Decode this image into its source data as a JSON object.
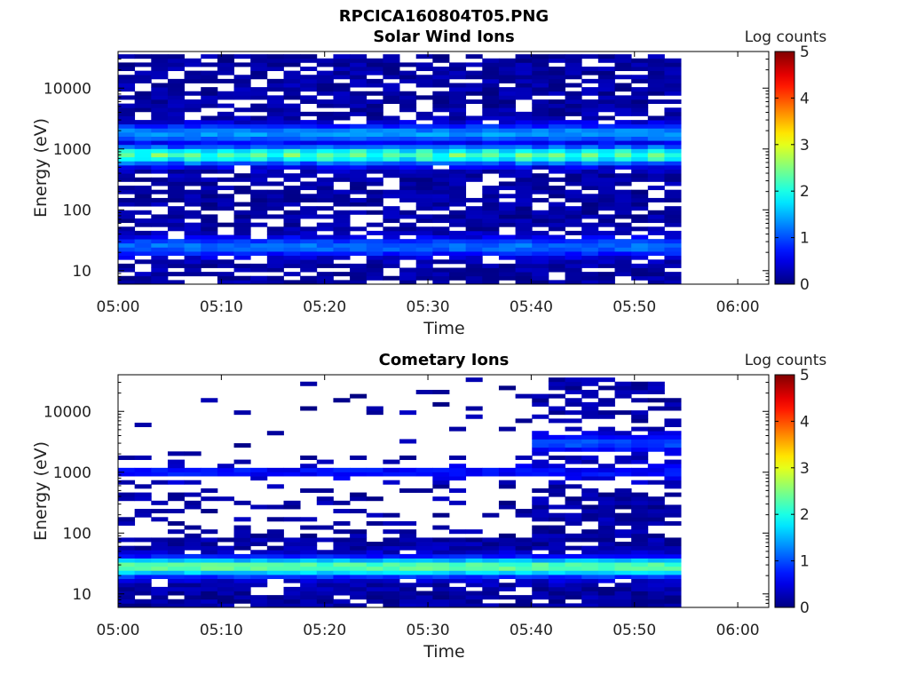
{
  "figure": {
    "title": "RPCICA160804T05.PNG"
  },
  "colors": {
    "colormap": "jet",
    "background": "#ffffff",
    "axis": "#000000"
  },
  "chart_data": [
    {
      "type": "heatmap",
      "title": "Solar Wind Ions",
      "xlabel": "Time",
      "ylabel": "Energy (eV)",
      "x_ticks": [
        "05:00",
        "05:10",
        "05:20",
        "05:30",
        "05:40",
        "05:50",
        "06:00"
      ],
      "xlim": [
        "05:00",
        "06:03"
      ],
      "data_end_time": "05:54.5",
      "y_scale": "log",
      "y_ticks": [
        10,
        100,
        1000,
        10000
      ],
      "y_tick_labels": [
        "10",
        "100",
        "1000",
        "10000"
      ],
      "ylim": [
        6,
        40000
      ],
      "colorbar": {
        "label": "Log counts",
        "range": [
          0,
          5
        ],
        "ticks": [
          "0",
          "1",
          "2",
          "3",
          "4",
          "5"
        ]
      },
      "grid": false,
      "features": [
        {
          "energy_ev": 800,
          "log_counts": 2.3,
          "description": "main solar wind proton beam"
        },
        {
          "energy_ev": 1800,
          "log_counts": 1.2,
          "description": "alpha / secondary beam"
        },
        {
          "energy_ev": 25,
          "log_counts": 1.0,
          "description": "low-energy population"
        }
      ]
    },
    {
      "type": "heatmap",
      "title": "Cometary Ions",
      "xlabel": "Time",
      "ylabel": "Energy (eV)",
      "x_ticks": [
        "05:00",
        "05:10",
        "05:20",
        "05:30",
        "05:40",
        "05:50",
        "06:00"
      ],
      "xlim": [
        "05:00",
        "06:03"
      ],
      "data_end_time": "05:54.5",
      "y_scale": "log",
      "y_ticks": [
        10,
        100,
        1000,
        10000
      ],
      "y_tick_labels": [
        "10",
        "100",
        "1000",
        "10000"
      ],
      "ylim": [
        6,
        40000
      ],
      "colorbar": {
        "label": "Log counts",
        "range": [
          0,
          5
        ],
        "ticks": [
          "0",
          "1",
          "2",
          "3",
          "4",
          "5"
        ]
      },
      "grid": false,
      "features": [
        {
          "energy_ev": 28,
          "log_counts": 2.2,
          "description": "low-energy cometary ions"
        },
        {
          "energy_ev": 1000,
          "log_counts": 0.5,
          "description": "sparse mid-energy counts"
        },
        {
          "energy_ev": 3000,
          "log_counts": 0.8,
          "description": "high-energy bursts after 05:40"
        }
      ]
    }
  ]
}
